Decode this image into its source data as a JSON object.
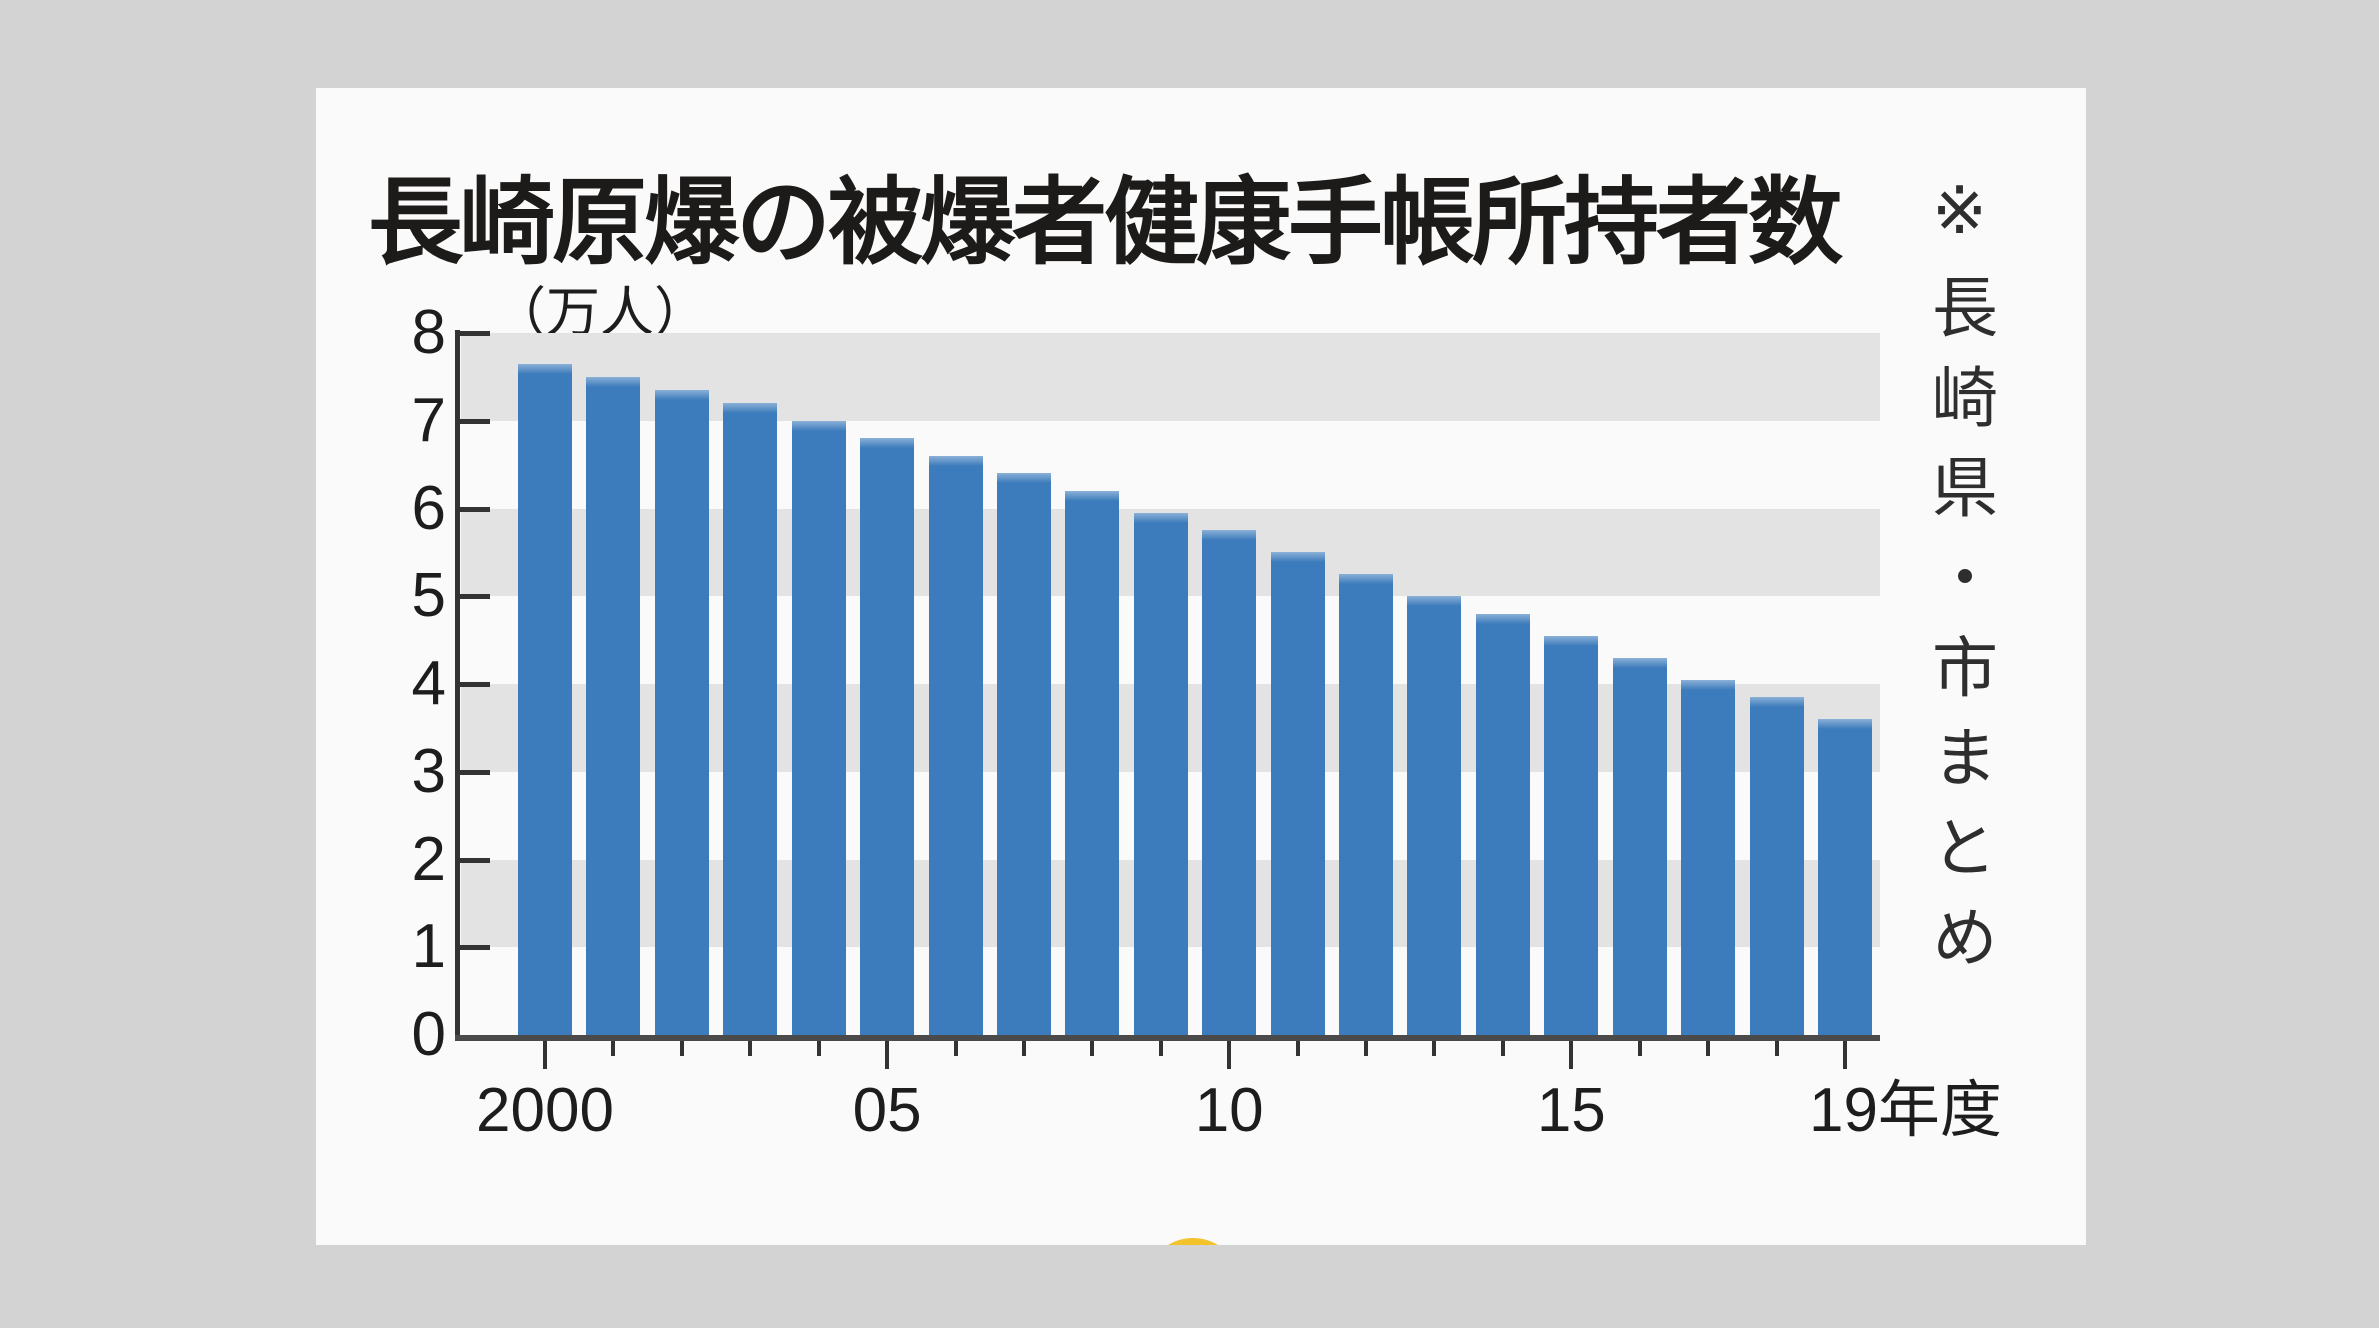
{
  "page": {
    "background_color": "#d3d3d3",
    "card_background_color": "#fafafa"
  },
  "chart": {
    "title": "長崎原爆の被爆者健康手帳所持者数",
    "unit_label": "（万人）",
    "source_note": "※長崎県・市まとめ"
  },
  "chart_data": {
    "type": "bar",
    "title": "長崎原爆の被爆者健康手帳所持者数",
    "unit": "万人",
    "source": "長崎県・市まとめ",
    "categories": [
      2000,
      2001,
      2002,
      2003,
      2004,
      2005,
      2006,
      2007,
      2008,
      2009,
      2010,
      2011,
      2012,
      2013,
      2014,
      2015,
      2016,
      2017,
      2018,
      2019
    ],
    "values": [
      7.65,
      7.5,
      7.35,
      7.2,
      7.0,
      6.8,
      6.6,
      6.4,
      6.2,
      5.95,
      5.75,
      5.5,
      5.25,
      5.0,
      4.8,
      4.55,
      4.3,
      4.05,
      3.85,
      3.6
    ],
    "ylim": [
      0,
      8
    ],
    "y_tick_labels": [
      "8",
      "7",
      "6",
      "5",
      "4",
      "3",
      "2",
      "1",
      "0"
    ],
    "x_tick_labels": [
      {
        "at": 2000,
        "text": "2000"
      },
      {
        "at": 2005,
        "text": "05"
      },
      {
        "at": 2010,
        "text": "10"
      },
      {
        "at": 2015,
        "text": "15"
      },
      {
        "at": 2019,
        "text": "19年度"
      }
    ],
    "grid": "alternating horizontal gray bands at 1-2, 3-4, 5-6, 7-8",
    "legend": "none",
    "bar_color": "#3d7cbc",
    "band_color": "#e3e3e3",
    "axis_color": "#3a3a3a"
  },
  "decor": {
    "yellow_dot_color": "#f3c32b"
  }
}
